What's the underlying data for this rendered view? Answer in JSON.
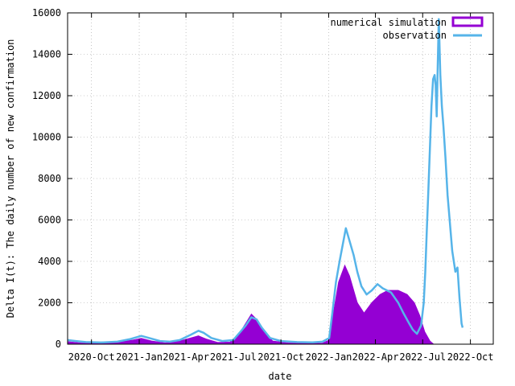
{
  "chart_data": {
    "type": "bar",
    "xlabel": "date",
    "ylabel": "Delta I(t): The daily number of new confirmation",
    "xlim": [
      "2020-08-16",
      "2022-11-14"
    ],
    "ylim": [
      0,
      16000
    ],
    "y_ticks": [
      0,
      2000,
      4000,
      6000,
      8000,
      10000,
      12000,
      14000,
      16000
    ],
    "x_ticks": [
      {
        "date": "2020-10-01",
        "label": "2020-Oct"
      },
      {
        "date": "2021-01-01",
        "label": "2021-Jan"
      },
      {
        "date": "2021-04-01",
        "label": "2021-Apr"
      },
      {
        "date": "2021-07-01",
        "label": "2021-Jul"
      },
      {
        "date": "2021-10-01",
        "label": "2021-Oct"
      },
      {
        "date": "2022-01-01",
        "label": "2022-Jan"
      },
      {
        "date": "2022-04-01",
        "label": "2022-Apr"
      },
      {
        "date": "2022-07-01",
        "label": "2022-Jul"
      },
      {
        "date": "2022-10-01",
        "label": "2022-Oct"
      }
    ],
    "grid": true,
    "legend_position": "top-right",
    "series": [
      {
        "name": "numerical simulation",
        "style": "filled-area",
        "color": "#9400d3",
        "points": [
          [
            "2020-08-16",
            120
          ],
          [
            "2020-09-10",
            60
          ],
          [
            "2020-10-15",
            40
          ],
          [
            "2020-11-20",
            80
          ],
          [
            "2020-12-20",
            200
          ],
          [
            "2021-01-05",
            280
          ],
          [
            "2021-01-25",
            150
          ],
          [
            "2021-02-20",
            60
          ],
          [
            "2021-03-20",
            150
          ],
          [
            "2021-04-10",
            300
          ],
          [
            "2021-04-25",
            400
          ],
          [
            "2021-05-10",
            250
          ],
          [
            "2021-06-01",
            80
          ],
          [
            "2021-06-25",
            100
          ],
          [
            "2021-07-10",
            400
          ],
          [
            "2021-07-25",
            1000
          ],
          [
            "2021-08-05",
            1450
          ],
          [
            "2021-08-15",
            1200
          ],
          [
            "2021-08-30",
            600
          ],
          [
            "2021-09-15",
            150
          ],
          [
            "2021-10-15",
            60
          ],
          [
            "2021-11-20",
            40
          ],
          [
            "2021-12-20",
            50
          ],
          [
            "2022-01-02",
            200
          ],
          [
            "2022-01-10",
            1500
          ],
          [
            "2022-01-20",
            3000
          ],
          [
            "2022-02-01",
            3800
          ],
          [
            "2022-02-10",
            3300
          ],
          [
            "2022-02-25",
            2000
          ],
          [
            "2022-03-10",
            1500
          ],
          [
            "2022-03-25",
            2000
          ],
          [
            "2022-04-10",
            2400
          ],
          [
            "2022-04-25",
            2600
          ],
          [
            "2022-05-15",
            2600
          ],
          [
            "2022-06-01",
            2400
          ],
          [
            "2022-06-15",
            2000
          ],
          [
            "2022-06-25",
            1400
          ],
          [
            "2022-07-05",
            600
          ],
          [
            "2022-07-15",
            150
          ],
          [
            "2022-07-22",
            0
          ]
        ]
      },
      {
        "name": "observation",
        "style": "line",
        "color": "#56b4e9",
        "points": [
          [
            "2020-08-16",
            200
          ],
          [
            "2020-09-01",
            150
          ],
          [
            "2020-09-20",
            100
          ],
          [
            "2020-10-20",
            80
          ],
          [
            "2020-11-20",
            120
          ],
          [
            "2020-12-15",
            250
          ],
          [
            "2021-01-05",
            400
          ],
          [
            "2021-01-20",
            300
          ],
          [
            "2021-02-10",
            150
          ],
          [
            "2021-03-01",
            120
          ],
          [
            "2021-03-20",
            200
          ],
          [
            "2021-04-10",
            450
          ],
          [
            "2021-04-25",
            650
          ],
          [
            "2021-05-05",
            550
          ],
          [
            "2021-05-20",
            300
          ],
          [
            "2021-06-10",
            150
          ],
          [
            "2021-07-01",
            200
          ],
          [
            "2021-07-15",
            600
          ],
          [
            "2021-07-25",
            900
          ],
          [
            "2021-08-05",
            1300
          ],
          [
            "2021-08-15",
            1200
          ],
          [
            "2021-08-25",
            800
          ],
          [
            "2021-09-10",
            300
          ],
          [
            "2021-10-01",
            150
          ],
          [
            "2021-11-01",
            100
          ],
          [
            "2021-12-01",
            90
          ],
          [
            "2021-12-20",
            120
          ],
          [
            "2022-01-02",
            300
          ],
          [
            "2022-01-08",
            1500
          ],
          [
            "2022-01-15",
            3000
          ],
          [
            "2022-01-22",
            4000
          ],
          [
            "2022-01-28",
            4800
          ],
          [
            "2022-02-03",
            5600
          ],
          [
            "2022-02-10",
            5000
          ],
          [
            "2022-02-18",
            4300
          ],
          [
            "2022-02-25",
            3500
          ],
          [
            "2022-03-05",
            2800
          ],
          [
            "2022-03-15",
            2400
          ],
          [
            "2022-03-25",
            2600
          ],
          [
            "2022-04-05",
            2900
          ],
          [
            "2022-04-15",
            2700
          ],
          [
            "2022-05-01",
            2500
          ],
          [
            "2022-05-15",
            2000
          ],
          [
            "2022-05-25",
            1500
          ],
          [
            "2022-06-05",
            1000
          ],
          [
            "2022-06-12",
            700
          ],
          [
            "2022-06-20",
            500
          ],
          [
            "2022-06-28",
            900
          ],
          [
            "2022-07-03",
            2000
          ],
          [
            "2022-07-06",
            3500
          ],
          [
            "2022-07-09",
            5500
          ],
          [
            "2022-07-12",
            7500
          ],
          [
            "2022-07-15",
            9500
          ],
          [
            "2022-07-18",
            11500
          ],
          [
            "2022-07-21",
            12800
          ],
          [
            "2022-07-24",
            13000
          ],
          [
            "2022-07-26",
            12500
          ],
          [
            "2022-07-28",
            11000
          ],
          [
            "2022-07-30",
            13500
          ],
          [
            "2022-08-01",
            15700
          ],
          [
            "2022-08-04",
            13000
          ],
          [
            "2022-08-07",
            11500
          ],
          [
            "2022-08-10",
            10500
          ],
          [
            "2022-08-14",
            9000
          ],
          [
            "2022-08-18",
            7200
          ],
          [
            "2022-08-22",
            6000
          ],
          [
            "2022-08-27",
            4500
          ],
          [
            "2022-09-02",
            3500
          ],
          [
            "2022-09-06",
            3700
          ],
          [
            "2022-09-10",
            2200
          ],
          [
            "2022-09-14",
            1000
          ],
          [
            "2022-09-16",
            800
          ]
        ]
      }
    ]
  }
}
